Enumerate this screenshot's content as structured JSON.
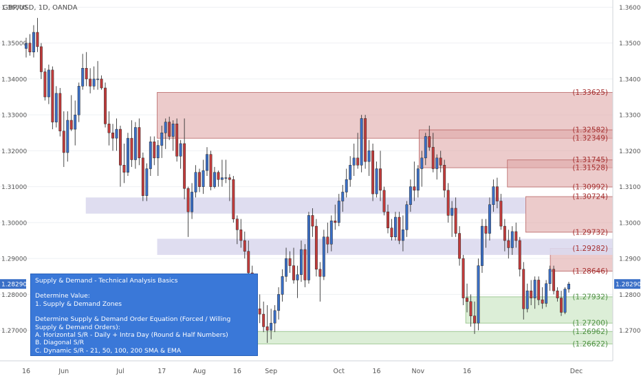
{
  "chart_data": {
    "type": "candlestick",
    "title": "GBP/USD, 1D, OANDA",
    "ylim": [
      1.2615,
      1.362
    ],
    "y_ticks": [
      "1.36000",
      "1.35000",
      "1.34000",
      "1.33000",
      "1.32000",
      "1.31000",
      "1.30000",
      "1.29000",
      "1.28000",
      "1.27000"
    ],
    "x_ticks": [
      "16",
      "Jun",
      "Jul",
      "17",
      "Aug",
      "16",
      "Sep",
      "Oct",
      "16",
      "Nov",
      "16",
      "Dec"
    ],
    "last_price_label": "1.28290",
    "colors": {
      "up": "#3a6fc7",
      "down": "#c23b3b",
      "resistance": "#d9a1a1",
      "support": "#b9ddb0",
      "neutral": "#dcd8ee",
      "label_red": "#a63030",
      "label_green": "#4e9142"
    },
    "candles": [
      {
        "o": 1.3485,
        "h": 1.3515,
        "l": 1.346,
        "c": 1.35
      },
      {
        "o": 1.35,
        "h": 1.3525,
        "l": 1.3465,
        "c": 1.3475
      },
      {
        "o": 1.3475,
        "h": 1.355,
        "l": 1.346,
        "c": 1.353
      },
      {
        "o": 1.353,
        "h": 1.357,
        "l": 1.3475,
        "c": 1.349
      },
      {
        "o": 1.349,
        "h": 1.35,
        "l": 1.34,
        "c": 1.342
      },
      {
        "o": 1.342,
        "h": 1.343,
        "l": 1.334,
        "c": 1.335
      },
      {
        "o": 1.335,
        "h": 1.344,
        "l": 1.333,
        "c": 1.3425
      },
      {
        "o": 1.3425,
        "h": 1.3435,
        "l": 1.326,
        "c": 1.328
      },
      {
        "o": 1.328,
        "h": 1.338,
        "l": 1.3265,
        "c": 1.336
      },
      {
        "o": 1.336,
        "h": 1.3375,
        "l": 1.324,
        "c": 1.3255
      },
      {
        "o": 1.3255,
        "h": 1.331,
        "l": 1.3155,
        "c": 1.3195
      },
      {
        "o": 1.3195,
        "h": 1.331,
        "l": 1.317,
        "c": 1.3285
      },
      {
        "o": 1.3285,
        "h": 1.3355,
        "l": 1.3255,
        "c": 1.326
      },
      {
        "o": 1.326,
        "h": 1.334,
        "l": 1.3215,
        "c": 1.33
      },
      {
        "o": 1.33,
        "h": 1.339,
        "l": 1.328,
        "c": 1.338
      },
      {
        "o": 1.338,
        "h": 1.347,
        "l": 1.337,
        "c": 1.343
      },
      {
        "o": 1.343,
        "h": 1.3475,
        "l": 1.338,
        "c": 1.34
      },
      {
        "o": 1.34,
        "h": 1.343,
        "l": 1.336,
        "c": 1.338
      },
      {
        "o": 1.338,
        "h": 1.3435,
        "l": 1.337,
        "c": 1.34
      },
      {
        "o": 1.34,
        "h": 1.345,
        "l": 1.337,
        "c": 1.34
      },
      {
        "o": 1.34,
        "h": 1.341,
        "l": 1.337,
        "c": 1.3375
      },
      {
        "o": 1.3375,
        "h": 1.339,
        "l": 1.3265,
        "c": 1.3275
      },
      {
        "o": 1.3275,
        "h": 1.331,
        "l": 1.3215,
        "c": 1.325
      },
      {
        "o": 1.325,
        "h": 1.3275,
        "l": 1.32,
        "c": 1.3235
      },
      {
        "o": 1.3235,
        "h": 1.329,
        "l": 1.32,
        "c": 1.326
      },
      {
        "o": 1.326,
        "h": 1.327,
        "l": 1.31,
        "c": 1.316
      },
      {
        "o": 1.316,
        "h": 1.322,
        "l": 1.311,
        "c": 1.314
      },
      {
        "o": 1.314,
        "h": 1.325,
        "l": 1.313,
        "c": 1.3235
      },
      {
        "o": 1.3235,
        "h": 1.3285,
        "l": 1.3155,
        "c": 1.3175
      },
      {
        "o": 1.3175,
        "h": 1.328,
        "l": 1.315,
        "c": 1.3265
      },
      {
        "o": 1.3265,
        "h": 1.329,
        "l": 1.316,
        "c": 1.318
      },
      {
        "o": 1.318,
        "h": 1.3195,
        "l": 1.306,
        "c": 1.3075
      },
      {
        "o": 1.3075,
        "h": 1.3165,
        "l": 1.306,
        "c": 1.315
      },
      {
        "o": 1.315,
        "h": 1.324,
        "l": 1.313,
        "c": 1.3225
      },
      {
        "o": 1.3225,
        "h": 1.324,
        "l": 1.316,
        "c": 1.318
      },
      {
        "o": 1.318,
        "h": 1.323,
        "l": 1.313,
        "c": 1.3215
      },
      {
        "o": 1.3215,
        "h": 1.327,
        "l": 1.318,
        "c": 1.325
      },
      {
        "o": 1.325,
        "h": 1.329,
        "l": 1.3205,
        "c": 1.328
      },
      {
        "o": 1.328,
        "h": 1.3295,
        "l": 1.323,
        "c": 1.324
      },
      {
        "o": 1.324,
        "h": 1.3285,
        "l": 1.32,
        "c": 1.3275
      },
      {
        "o": 1.3275,
        "h": 1.329,
        "l": 1.317,
        "c": 1.3185
      },
      {
        "o": 1.3185,
        "h": 1.323,
        "l": 1.315,
        "c": 1.322
      },
      {
        "o": 1.322,
        "h": 1.329,
        "l": 1.3065,
        "c": 1.3095
      },
      {
        "o": 1.3095,
        "h": 1.31,
        "l": 1.296,
        "c": 1.303
      },
      {
        "o": 1.303,
        "h": 1.311,
        "l": 1.301,
        "c": 1.3085
      },
      {
        "o": 1.3085,
        "h": 1.316,
        "l": 1.307,
        "c": 1.314
      },
      {
        "o": 1.314,
        "h": 1.315,
        "l": 1.3085,
        "c": 1.31
      },
      {
        "o": 1.31,
        "h": 1.3175,
        "l": 1.308,
        "c": 1.3145
      },
      {
        "o": 1.3145,
        "h": 1.321,
        "l": 1.313,
        "c": 1.319
      },
      {
        "o": 1.319,
        "h": 1.32,
        "l": 1.309,
        "c": 1.31
      },
      {
        "o": 1.31,
        "h": 1.3155,
        "l": 1.3095,
        "c": 1.314
      },
      {
        "o": 1.314,
        "h": 1.3145,
        "l": 1.31,
        "c": 1.312
      },
      {
        "o": 1.312,
        "h": 1.3175,
        "l": 1.31,
        "c": 1.3125
      },
      {
        "o": 1.3125,
        "h": 1.3175,
        "l": 1.311,
        "c": 1.3125
      },
      {
        "o": 1.3125,
        "h": 1.3135,
        "l": 1.306,
        "c": 1.312
      },
      {
        "o": 1.312,
        "h": 1.313,
        "l": 1.3,
        "c": 1.301
      },
      {
        "o": 1.301,
        "h": 1.302,
        "l": 1.294,
        "c": 1.298
      },
      {
        "o": 1.298,
        "h": 1.301,
        "l": 1.293,
        "c": 1.295
      },
      {
        "o": 1.295,
        "h": 1.2975,
        "l": 1.29,
        "c": 1.292
      },
      {
        "o": 1.292,
        "h": 1.295,
        "l": 1.284,
        "c": 1.286
      },
      {
        "o": 1.286,
        "h": 1.288,
        "l": 1.277,
        "c": 1.279
      },
      {
        "o": 1.279,
        "h": 1.283,
        "l": 1.274,
        "c": 1.276
      },
      {
        "o": 1.276,
        "h": 1.28,
        "l": 1.272,
        "c": 1.2745
      },
      {
        "o": 1.2745,
        "h": 1.278,
        "l": 1.2695,
        "c": 1.271
      },
      {
        "o": 1.271,
        "h": 1.277,
        "l": 1.2665,
        "c": 1.27
      },
      {
        "o": 1.27,
        "h": 1.276,
        "l": 1.2675,
        "c": 1.272
      },
      {
        "o": 1.272,
        "h": 1.277,
        "l": 1.2695,
        "c": 1.2755
      },
      {
        "o": 1.2755,
        "h": 1.282,
        "l": 1.273,
        "c": 1.28
      },
      {
        "o": 1.28,
        "h": 1.287,
        "l": 1.278,
        "c": 1.285
      },
      {
        "o": 1.285,
        "h": 1.293,
        "l": 1.2835,
        "c": 1.29
      },
      {
        "o": 1.29,
        "h": 1.292,
        "l": 1.286,
        "c": 1.288
      },
      {
        "o": 1.288,
        "h": 1.293,
        "l": 1.283,
        "c": 1.284
      },
      {
        "o": 1.284,
        "h": 1.288,
        "l": 1.279,
        "c": 1.2855
      },
      {
        "o": 1.2855,
        "h": 1.295,
        "l": 1.2835,
        "c": 1.2925
      },
      {
        "o": 1.2925,
        "h": 1.294,
        "l": 1.282,
        "c": 1.284
      },
      {
        "o": 1.284,
        "h": 1.303,
        "l": 1.283,
        "c": 1.302
      },
      {
        "o": 1.302,
        "h": 1.304,
        "l": 1.296,
        "c": 1.299
      },
      {
        "o": 1.299,
        "h": 1.301,
        "l": 1.285,
        "c": 1.287
      },
      {
        "o": 1.287,
        "h": 1.289,
        "l": 1.278,
        "c": 1.285
      },
      {
        "o": 1.285,
        "h": 1.298,
        "l": 1.284,
        "c": 1.296
      },
      {
        "o": 1.296,
        "h": 1.3,
        "l": 1.2915,
        "c": 1.294
      },
      {
        "o": 1.294,
        "h": 1.302,
        "l": 1.292,
        "c": 1.3005
      },
      {
        "o": 1.3005,
        "h": 1.305,
        "l": 1.298,
        "c": 1.3
      },
      {
        "o": 1.3,
        "h": 1.308,
        "l": 1.299,
        "c": 1.306
      },
      {
        "o": 1.306,
        "h": 1.3105,
        "l": 1.303,
        "c": 1.3085
      },
      {
        "o": 1.3085,
        "h": 1.315,
        "l": 1.307,
        "c": 1.312
      },
      {
        "o": 1.312,
        "h": 1.3185,
        "l": 1.31,
        "c": 1.316
      },
      {
        "o": 1.316,
        "h": 1.322,
        "l": 1.313,
        "c": 1.318
      },
      {
        "o": 1.318,
        "h": 1.325,
        "l": 1.315,
        "c": 1.316
      },
      {
        "o": 1.316,
        "h": 1.33,
        "l": 1.314,
        "c": 1.329
      },
      {
        "o": 1.329,
        "h": 1.33,
        "l": 1.315,
        "c": 1.317
      },
      {
        "o": 1.317,
        "h": 1.323,
        "l": 1.313,
        "c": 1.32
      },
      {
        "o": 1.32,
        "h": 1.322,
        "l": 1.306,
        "c": 1.308
      },
      {
        "o": 1.308,
        "h": 1.317,
        "l": 1.307,
        "c": 1.315
      },
      {
        "o": 1.315,
        "h": 1.32,
        "l": 1.306,
        "c": 1.309
      },
      {
        "o": 1.309,
        "h": 1.31,
        "l": 1.302,
        "c": 1.303
      },
      {
        "o": 1.303,
        "h": 1.305,
        "l": 1.297,
        "c": 1.2985
      },
      {
        "o": 1.2985,
        "h": 1.301,
        "l": 1.295,
        "c": 1.296
      },
      {
        "o": 1.296,
        "h": 1.303,
        "l": 1.295,
        "c": 1.3015
      },
      {
        "o": 1.3015,
        "h": 1.303,
        "l": 1.294,
        "c": 1.295
      },
      {
        "o": 1.295,
        "h": 1.302,
        "l": 1.292,
        "c": 1.298
      },
      {
        "o": 1.298,
        "h": 1.306,
        "l": 1.296,
        "c": 1.305
      },
      {
        "o": 1.305,
        "h": 1.312,
        "l": 1.303,
        "c": 1.31
      },
      {
        "o": 1.31,
        "h": 1.317,
        "l": 1.306,
        "c": 1.309
      },
      {
        "o": 1.309,
        "h": 1.316,
        "l": 1.307,
        "c": 1.315
      },
      {
        "o": 1.315,
        "h": 1.32,
        "l": 1.31,
        "c": 1.318
      },
      {
        "o": 1.318,
        "h": 1.325,
        "l": 1.316,
        "c": 1.324
      },
      {
        "o": 1.324,
        "h": 1.327,
        "l": 1.32,
        "c": 1.321
      },
      {
        "o": 1.321,
        "h": 1.325,
        "l": 1.314,
        "c": 1.315
      },
      {
        "o": 1.315,
        "h": 1.319,
        "l": 1.312,
        "c": 1.318
      },
      {
        "o": 1.318,
        "h": 1.32,
        "l": 1.314,
        "c": 1.316
      },
      {
        "o": 1.316,
        "h": 1.3175,
        "l": 1.307,
        "c": 1.309
      },
      {
        "o": 1.309,
        "h": 1.311,
        "l": 1.3,
        "c": 1.302
      },
      {
        "o": 1.302,
        "h": 1.306,
        "l": 1.296,
        "c": 1.304
      },
      {
        "o": 1.304,
        "h": 1.307,
        "l": 1.296,
        "c": 1.297
      },
      {
        "o": 1.297,
        "h": 1.299,
        "l": 1.288,
        "c": 1.29
      },
      {
        "o": 1.29,
        "h": 1.291,
        "l": 1.277,
        "c": 1.279
      },
      {
        "o": 1.279,
        "h": 1.283,
        "l": 1.275,
        "c": 1.278
      },
      {
        "o": 1.278,
        "h": 1.28,
        "l": 1.271,
        "c": 1.274
      },
      {
        "o": 1.274,
        "h": 1.278,
        "l": 1.269,
        "c": 1.272
      },
      {
        "o": 1.272,
        "h": 1.29,
        "l": 1.27,
        "c": 1.288
      },
      {
        "o": 1.288,
        "h": 1.301,
        "l": 1.286,
        "c": 1.299
      },
      {
        "o": 1.299,
        "h": 1.301,
        "l": 1.293,
        "c": 1.297
      },
      {
        "o": 1.297,
        "h": 1.307,
        "l": 1.295,
        "c": 1.305
      },
      {
        "o": 1.305,
        "h": 1.312,
        "l": 1.303,
        "c": 1.31
      },
      {
        "o": 1.31,
        "h": 1.3125,
        "l": 1.304,
        "c": 1.306
      },
      {
        "o": 1.306,
        "h": 1.308,
        "l": 1.298,
        "c": 1.299
      },
      {
        "o": 1.299,
        "h": 1.301,
        "l": 1.292,
        "c": 1.295
      },
      {
        "o": 1.295,
        "h": 1.298,
        "l": 1.29,
        "c": 1.293
      },
      {
        "o": 1.293,
        "h": 1.299,
        "l": 1.291,
        "c": 1.2975
      },
      {
        "o": 1.2975,
        "h": 1.3,
        "l": 1.293,
        "c": 1.295
      },
      {
        "o": 1.295,
        "h": 1.296,
        "l": 1.285,
        "c": 1.287
      },
      {
        "o": 1.287,
        "h": 1.289,
        "l": 1.273,
        "c": 1.276
      },
      {
        "o": 1.276,
        "h": 1.283,
        "l": 1.275,
        "c": 1.281
      },
      {
        "o": 1.281,
        "h": 1.284,
        "l": 1.277,
        "c": 1.279
      },
      {
        "o": 1.279,
        "h": 1.285,
        "l": 1.276,
        "c": 1.284
      },
      {
        "o": 1.284,
        "h": 1.285,
        "l": 1.277,
        "c": 1.2785
      },
      {
        "o": 1.2785,
        "h": 1.282,
        "l": 1.276,
        "c": 1.2775
      },
      {
        "o": 1.2775,
        "h": 1.284,
        "l": 1.2765,
        "c": 1.283
      },
      {
        "o": 1.283,
        "h": 1.288,
        "l": 1.281,
        "c": 1.287
      },
      {
        "o": 1.287,
        "h": 1.288,
        "l": 1.28,
        "c": 1.281
      },
      {
        "o": 1.281,
        "h": 1.282,
        "l": 1.278,
        "c": 1.279
      },
      {
        "o": 1.279,
        "h": 1.281,
        "l": 1.274,
        "c": 1.275
      },
      {
        "o": 1.275,
        "h": 1.282,
        "l": 1.2745,
        "c": 1.2815
      },
      {
        "o": 1.2815,
        "h": 1.2835,
        "l": 1.2805,
        "c": 1.2829
      }
    ],
    "zones": [
      {
        "name": "resistance-zone-1",
        "y0": 1.32349,
        "y1": 1.33625,
        "start": 0.2565,
        "kind": "resistance"
      },
      {
        "name": "resistance-zone-2",
        "y0": 1.31528,
        "y1": 1.32582,
        "start": 0.684,
        "kind": "resistance"
      },
      {
        "name": "resistance-zone-3",
        "y0": 1.30992,
        "y1": 1.31745,
        "start": 0.828,
        "kind": "resistance"
      },
      {
        "name": "resistance-zone-4",
        "y0": 1.29732,
        "y1": 1.30724,
        "start": 0.858,
        "kind": "resistance"
      },
      {
        "name": "resistance-zone-5",
        "y0": 1.28646,
        "y1": 1.29282,
        "start": 0.898,
        "kind": "resistance"
      },
      {
        "name": "support-zone-1",
        "y0": 1.272,
        "y1": 1.27932,
        "start": 0.76,
        "kind": "support"
      },
      {
        "name": "support-zone-2",
        "y0": 1.26622,
        "y1": 1.26962,
        "start": 0.403,
        "kind": "support"
      },
      {
        "name": "neutral-zone-1",
        "y0": 1.3025,
        "y1": 1.307,
        "start": 0.14,
        "end": 0.8575,
        "kind": "neutral"
      },
      {
        "name": "neutral-zone-2",
        "y0": 1.291,
        "y1": 1.2955,
        "start": 0.2565,
        "kind": "neutral"
      }
    ],
    "level_labels": [
      {
        "value": 1.33625,
        "text": "(1.33625)",
        "kind": "resistance"
      },
      {
        "value": 1.32582,
        "text": "(1.32582)",
        "kind": "resistance"
      },
      {
        "value": 1.32349,
        "text": "(1.32349)",
        "kind": "resistance"
      },
      {
        "value": 1.31745,
        "text": "(1.31745)",
        "kind": "resistance"
      },
      {
        "value": 1.31528,
        "text": "(1.31528)",
        "kind": "resistance"
      },
      {
        "value": 1.30992,
        "text": "(1.30992)",
        "kind": "resistance"
      },
      {
        "value": 1.30724,
        "text": "(1.30724)",
        "kind": "resistance"
      },
      {
        "value": 1.29732,
        "text": "(1.29732)",
        "kind": "resistance"
      },
      {
        "value": 1.29282,
        "text": "(1.29282)",
        "kind": "resistance"
      },
      {
        "value": 1.28646,
        "text": "(1.28646)",
        "kind": "resistance"
      },
      {
        "value": 1.27932,
        "text": "(1.27932)",
        "kind": "support"
      },
      {
        "value": 1.272,
        "text": "(1.27200)",
        "kind": "support"
      },
      {
        "value": 1.26962,
        "text": "(1.26962)",
        "kind": "support"
      },
      {
        "value": 1.26622,
        "text": "(1.26622)",
        "kind": "support"
      }
    ]
  },
  "info_box": {
    "heading": "Supply & Demand - Technical Analysis Basics",
    "line1": "Determine Value:",
    "line2": "1. Supply & Demand Zones",
    "line3": "Determine Supply & Demand Order Equation (Forced / Willing",
    "line4": "Supply & Demand Orders):",
    "line5": "A. Horizontal S/R - Daily + Intra Day (Round & Half Numbers)",
    "line6": "B. Diagonal S/R",
    "line7": "C. Dynamic S/R - 21, 50, 100, 200 SMA & EMA"
  }
}
